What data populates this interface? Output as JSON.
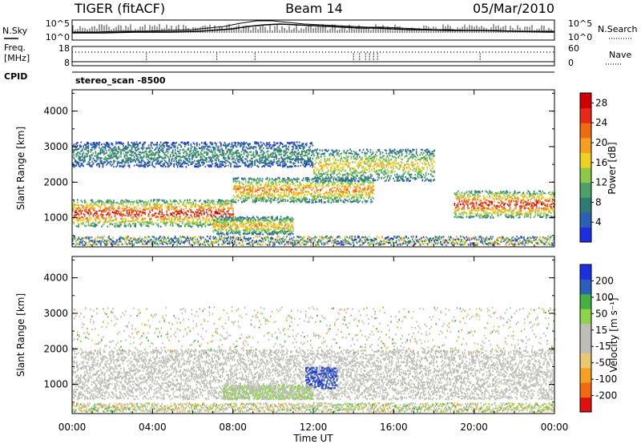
{
  "header": {
    "radar": "TIGER (fitACF)",
    "beam": "Beam 14",
    "date": "05/Mar/2010"
  },
  "sky_panel": {
    "left_label": "N.Sky",
    "right_label": "N.Search",
    "left_ticks": [
      "10^5",
      "10^0"
    ],
    "right_ticks": [
      "10^5",
      "10^0"
    ]
  },
  "freq_panel": {
    "left_label_1": "Freq.",
    "left_label_2": "[MHz]",
    "right_label": "Nave",
    "left_ticks": [
      "18",
      "8"
    ],
    "right_ticks": [
      "60",
      "0"
    ],
    "cpid_label": "CPID",
    "program_label": "stereo_scan -8500"
  },
  "colors": {
    "power_scale": [
      "#1c2fe0",
      "#2c5fb8",
      "#2e7b75",
      "#4ca06a",
      "#8cc84a",
      "#f0d020",
      "#f5a020",
      "#f06a10",
      "#e82818",
      "#d00000"
    ],
    "velocity_scale": [
      "#e01010",
      "#f06a10",
      "#f5a020",
      "#e8c870",
      "#bebeb6",
      "#bebeb6",
      "#8cd44a",
      "#44b044",
      "#2c5fb8",
      "#1c2fe0"
    ],
    "ground_scatter": "#bebeb6"
  },
  "chart_data": [
    {
      "type": "heatmap",
      "title": "",
      "xlabel": "Time UT",
      "ylabel": "Slant Range [km]",
      "x_ticks": [
        "00:00",
        "04:00",
        "08:00",
        "12:00",
        "16:00",
        "20:00",
        "00:00"
      ],
      "xlim": [
        0,
        24
      ],
      "y_ticks": [
        1000,
        2000,
        3000,
        4000
      ],
      "ylim": [
        180,
        4600
      ],
      "colorbar": {
        "label": "Power [dB]",
        "ticks": [
          4,
          8,
          12,
          16,
          20,
          24,
          28
        ],
        "range": [
          0,
          30
        ]
      },
      "features": [
        {
          "kind": "band",
          "t_start": 0,
          "t_end": 8,
          "r_center": 1150,
          "width": 380,
          "power": 27
        },
        {
          "kind": "band",
          "t_start": 8,
          "t_end": 15,
          "r_center": 1800,
          "width": 350,
          "power": 22
        },
        {
          "kind": "band",
          "t_start": 19,
          "t_end": 24,
          "r_center": 1400,
          "width": 380,
          "power": 27
        },
        {
          "kind": "band",
          "t_start": 0,
          "t_end": 12,
          "r_center": 2800,
          "width": 350,
          "power": 10
        },
        {
          "kind": "band",
          "t_start": 12,
          "t_end": 18,
          "r_center": 2500,
          "width": 450,
          "power": 18
        },
        {
          "kind": "band",
          "t_start": 7,
          "t_end": 11,
          "r_center": 800,
          "width": 250,
          "power": 20
        }
      ]
    },
    {
      "type": "heatmap",
      "title": "",
      "xlabel": "Time UT",
      "ylabel": "Slant Range [km]",
      "x_ticks": [
        "00:00",
        "04:00",
        "08:00",
        "12:00",
        "16:00",
        "20:00",
        "00:00"
      ],
      "xlim": [
        0,
        24
      ],
      "y_ticks": [
        1000,
        2000,
        3000,
        4000
      ],
      "ylim": [
        180,
        4600
      ],
      "colorbar": {
        "label": "Velocity [m s⁻¹]",
        "ticks": [
          200,
          100,
          50,
          15,
          -15,
          -50,
          -100,
          -200
        ],
        "range": [
          -250,
          250
        ]
      },
      "features": [
        {
          "kind": "ground_scatter",
          "t_start": 0,
          "t_end": 24,
          "r_center": 1300,
          "width": 700
        },
        {
          "kind": "patch",
          "t_start": 11.6,
          "t_end": 13.2,
          "r_center": 1200,
          "width": 300,
          "velocity": 200
        },
        {
          "kind": "patch",
          "t_start": 7.5,
          "t_end": 12,
          "r_center": 800,
          "width": 200,
          "velocity": 50
        }
      ]
    }
  ]
}
